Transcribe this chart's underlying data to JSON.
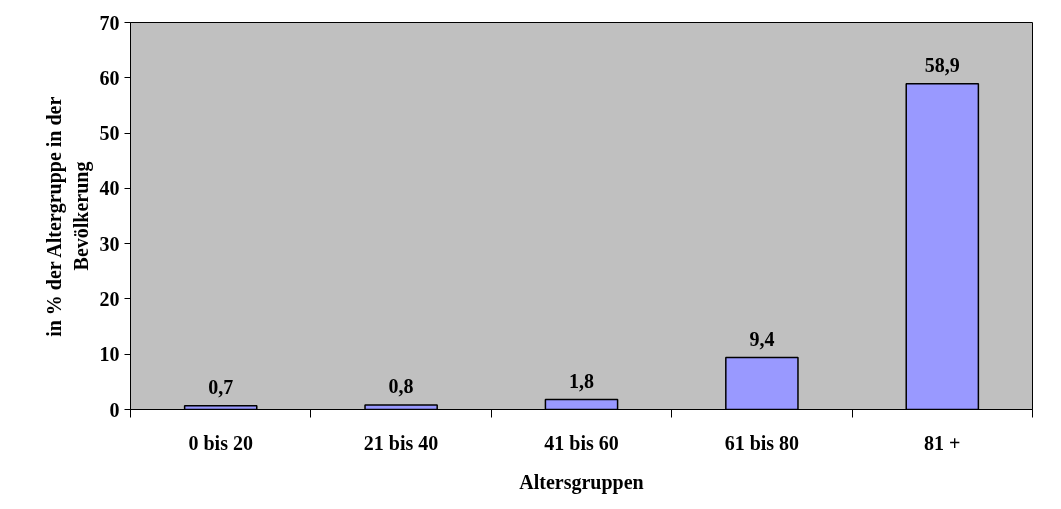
{
  "chart_data": {
    "type": "bar",
    "xlabel": "Altersgruppen",
    "ylabel": "in % der Altergruppe in der\nBevölkerung",
    "categories": [
      "0 bis 20",
      "21 bis 40",
      "41 bis 60",
      "61 bis 80",
      "81 +"
    ],
    "values": [
      0.7,
      0.8,
      1.8,
      9.4,
      58.9
    ],
    "value_labels": [
      "0,7",
      "0,8",
      "1,8",
      "9,4",
      "58,9"
    ],
    "color": "#9999ff",
    "ylim": [
      0,
      70
    ],
    "yticks": [
      0,
      10,
      20,
      30,
      40,
      50,
      60,
      70
    ],
    "grid": false
  }
}
